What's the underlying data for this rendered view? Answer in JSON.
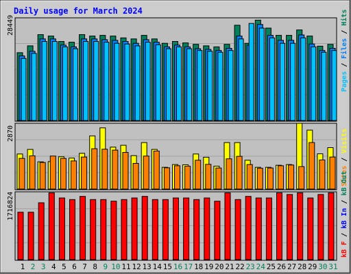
{
  "title": "Daily usage for March 2024",
  "colors": {
    "frame_bg": "#cccccc",
    "plot_bg": "#c0c0c0",
    "title": "#0000ff",
    "hits": "#00805c",
    "files": "#0080ff",
    "pages": "#00c0ff",
    "visits": "#ffff00",
    "sites": "#ff8000",
    "kbout": "#00805c",
    "kbin": "#0000ff",
    "kbf": "#ff0000",
    "weekend_day": "#00805c",
    "weekday": "#000000"
  },
  "chart_data": [
    {
      "type": "bar",
      "panel": "hits-files-pages",
      "y_axis_label": "28449",
      "legend": [
        "Pages",
        "Files",
        "Hits"
      ],
      "ylim": [
        0,
        28449
      ],
      "categories": [
        "1",
        "2",
        "3",
        "4",
        "5",
        "6",
        "7",
        "8",
        "9",
        "10",
        "11",
        "12",
        "13",
        "14",
        "15",
        "16",
        "17",
        "18",
        "19",
        "20",
        "21",
        "22",
        "23",
        "24",
        "25",
        "26",
        "27",
        "28",
        "29",
        "30",
        "31"
      ],
      "series": [
        {
          "name": "Hits",
          "values": [
            18800,
            20700,
            23800,
            23400,
            21900,
            21700,
            23800,
            23400,
            23600,
            23400,
            22900,
            22600,
            23600,
            22600,
            21400,
            21900,
            21500,
            21100,
            20700,
            20400,
            21100,
            26400,
            21400,
            27800,
            25600,
            23600,
            23600,
            25100,
            23400,
            20600,
            21100
          ]
        },
        {
          "name": "Files",
          "values": [
            17900,
            19200,
            22600,
            22600,
            20900,
            20400,
            22600,
            22600,
            22400,
            22200,
            21900,
            21400,
            22400,
            21700,
            20400,
            20900,
            20400,
            19900,
            19700,
            19400,
            20000,
            23400,
            20900,
            26600,
            23600,
            22200,
            22200,
            23700,
            21200,
            19400,
            20000
          ]
        },
        {
          "name": "Pages",
          "values": [
            17200,
            18600,
            21900,
            21900,
            20400,
            19900,
            21900,
            21900,
            21700,
            21400,
            21200,
            20700,
            21700,
            21000,
            19900,
            20400,
            19900,
            19400,
            19200,
            18900,
            19400,
            22600,
            26900,
            25600,
            22900,
            21400,
            21400,
            22900,
            20400,
            18900,
            19400
          ]
        }
      ]
    },
    {
      "type": "bar",
      "panel": "sites-visits",
      "y_axis_label": "2870",
      "legend": [
        "Sites",
        "Visits"
      ],
      "ylim": [
        0,
        2870
      ],
      "categories": [
        "1",
        "2",
        "3",
        "4",
        "5",
        "6",
        "7",
        "8",
        "9",
        "10",
        "11",
        "12",
        "13",
        "14",
        "15",
        "16",
        "17",
        "18",
        "19",
        "20",
        "21",
        "22",
        "23",
        "24",
        "25",
        "26",
        "27",
        "28",
        "29",
        "30",
        "31"
      ],
      "series": [
        {
          "name": "Visits",
          "values": [
            1530,
            1730,
            1190,
            1200,
            1410,
            1350,
            1560,
            2320,
            2670,
            1830,
            1910,
            1460,
            2030,
            1730,
            950,
            1070,
            1060,
            1530,
            1390,
            1000,
            2030,
            2030,
            1260,
            950,
            950,
            1040,
            1070,
            2870,
            2570,
            1540,
            1810
          ]
        },
        {
          "name": "Sites",
          "values": [
            1340,
            1450,
            1160,
            1440,
            1340,
            1230,
            1400,
            1760,
            1740,
            1700,
            1600,
            1120,
            1440,
            1660,
            930,
            1020,
            1000,
            1260,
            1080,
            920,
            1320,
            1430,
            1070,
            910,
            920,
            1020,
            1050,
            980,
            2030,
            1270,
            1400
          ]
        }
      ]
    },
    {
      "type": "bar",
      "panel": "kb",
      "y_axis_label": "1716824",
      "legend": [
        "kB F",
        "kB In",
        "kB Out"
      ],
      "ylim": [
        0,
        1716824
      ],
      "categories": [
        "1",
        "2",
        "3",
        "4",
        "5",
        "6",
        "7",
        "8",
        "9",
        "10",
        "11",
        "12",
        "13",
        "14",
        "15",
        "16",
        "17",
        "18",
        "19",
        "20",
        "21",
        "22",
        "23",
        "24",
        "25",
        "26",
        "27",
        "28",
        "29",
        "30",
        "31"
      ],
      "series": [
        {
          "name": "kB F",
          "values": [
            1200000,
            1200000,
            1440000,
            1690000,
            1560000,
            1520000,
            1600000,
            1520000,
            1520000,
            1480000,
            1520000,
            1560000,
            1600000,
            1520000,
            1520000,
            1560000,
            1560000,
            1520000,
            1560000,
            1480000,
            1690000,
            1520000,
            1600000,
            1560000,
            1560000,
            1690000,
            1650000,
            1690000,
            1560000,
            1650000,
            1690000
          ]
        }
      ]
    }
  ]
}
